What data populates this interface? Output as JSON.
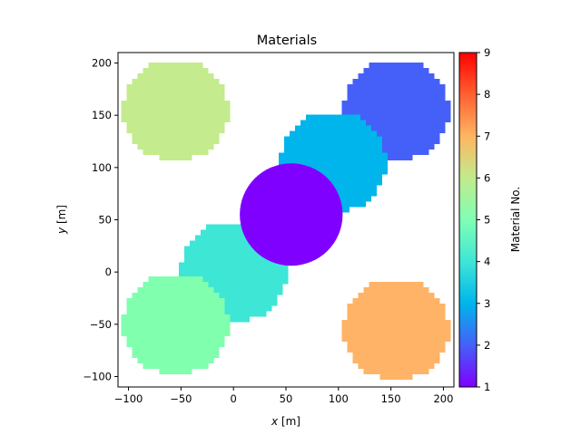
{
  "chart_data": {
    "type": "heatmap",
    "title": "Materials",
    "xlabel_var": "x",
    "xlabel_unit": " [m]",
    "ylabel_var": "y",
    "ylabel_unit": " [m]",
    "xlim": [
      -110,
      210
    ],
    "ylim": [
      -110,
      210
    ],
    "xticks": [
      -100,
      -50,
      0,
      50,
      100,
      150,
      200
    ],
    "yticks": [
      -100,
      -50,
      0,
      50,
      100,
      150,
      200
    ],
    "colormap": "rainbow",
    "colorbar": {
      "label": "Material No.",
      "range": [
        1,
        9
      ],
      "ticks": [
        1,
        2,
        3,
        4,
        5,
        6,
        7,
        8,
        9
      ]
    },
    "regions": [
      {
        "material": 6,
        "shape": "pixel-disk",
        "center": [
          -55,
          155
        ],
        "radius": 48,
        "color": "#c4eb8d"
      },
      {
        "material": 2,
        "shape": "pixel-disk",
        "center": [
          155,
          155
        ],
        "radius": 48,
        "color": "#4560f8"
      },
      {
        "material": 3,
        "shape": "pixel-disk",
        "center": [
          95,
          105
        ],
        "radius": 48,
        "color": "#00b5eb"
      },
      {
        "material": 4,
        "shape": "pixel-disk",
        "center": [
          0,
          0
        ],
        "radius": 48,
        "color": "#3ee6d6"
      },
      {
        "material": 5,
        "shape": "pixel-disk",
        "center": [
          -55,
          -50
        ],
        "radius": 48,
        "color": "#80ffaf"
      },
      {
        "material": 7,
        "shape": "pixel-disk",
        "center": [
          155,
          -55
        ],
        "radius": 48,
        "color": "#ffb366"
      },
      {
        "material": 1,
        "shape": "disk",
        "center": [
          55,
          55
        ],
        "radius": 49,
        "color": "#7f00ff"
      }
    ]
  }
}
